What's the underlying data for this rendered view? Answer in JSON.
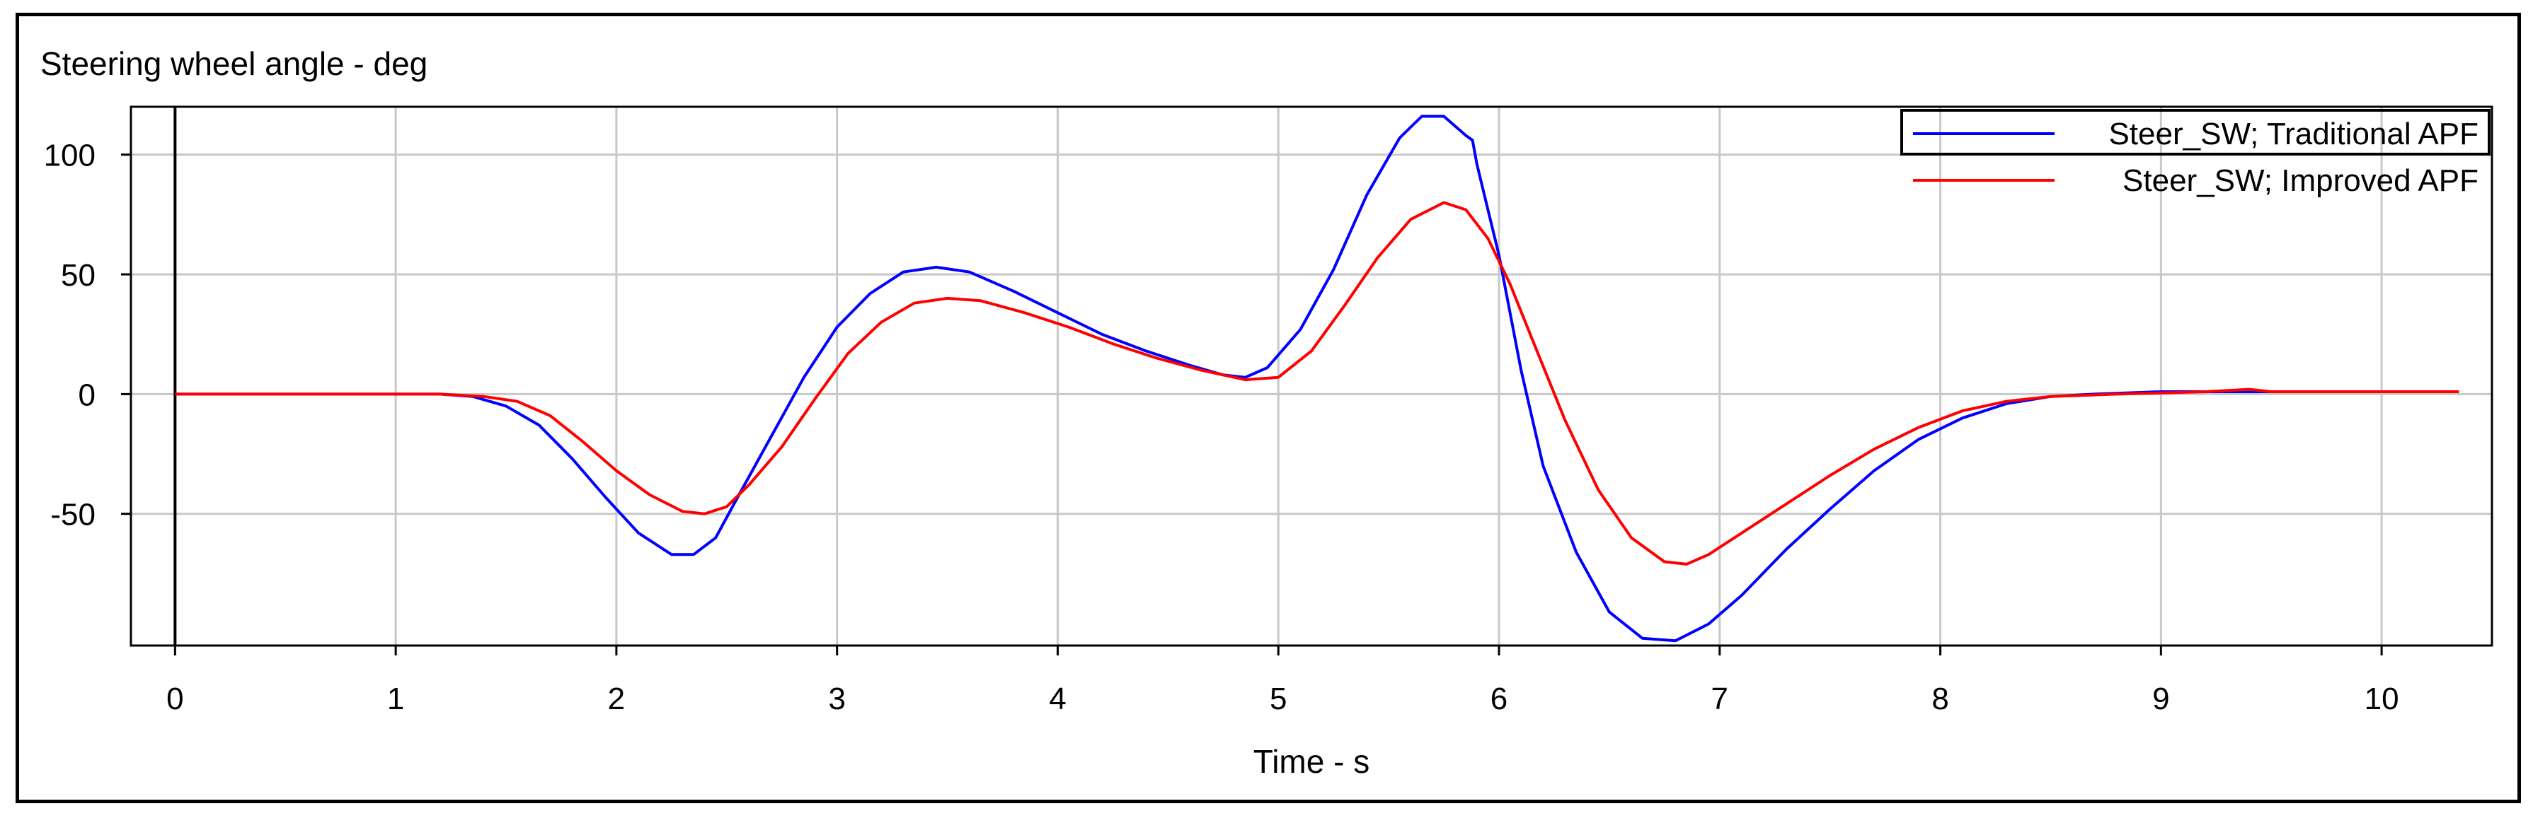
{
  "chart_data": {
    "type": "line",
    "title": "Steering wheel angle - deg",
    "xlabel": "Time - s",
    "ylabel": "",
    "xlim": [
      -0.2,
      10.5
    ],
    "ylim": [
      -105,
      120
    ],
    "xticks": [
      0,
      1,
      2,
      3,
      4,
      5,
      6,
      7,
      8,
      9,
      10
    ],
    "yticks": [
      100,
      50,
      0,
      -50
    ],
    "grid": true,
    "legend_position": "top-right",
    "series": [
      {
        "name": "Steer_SW; Traditional APF",
        "color": "#0000ff",
        "points": [
          [
            0,
            0
          ],
          [
            1.0,
            0
          ],
          [
            1.2,
            0
          ],
          [
            1.35,
            -1
          ],
          [
            1.5,
            -5
          ],
          [
            1.65,
            -13
          ],
          [
            1.8,
            -27
          ],
          [
            1.95,
            -43
          ],
          [
            2.1,
            -58
          ],
          [
            2.25,
            -67
          ],
          [
            2.35,
            -67
          ],
          [
            2.45,
            -60
          ],
          [
            2.55,
            -43
          ],
          [
            2.7,
            -18
          ],
          [
            2.85,
            7
          ],
          [
            3.0,
            28
          ],
          [
            3.15,
            42
          ],
          [
            3.3,
            51
          ],
          [
            3.45,
            53
          ],
          [
            3.6,
            51
          ],
          [
            3.8,
            43
          ],
          [
            4.0,
            34
          ],
          [
            4.2,
            25
          ],
          [
            4.4,
            18
          ],
          [
            4.6,
            12
          ],
          [
            4.75,
            8
          ],
          [
            4.85,
            7
          ],
          [
            4.95,
            11
          ],
          [
            5.1,
            27
          ],
          [
            5.25,
            52
          ],
          [
            5.4,
            83
          ],
          [
            5.55,
            107
          ],
          [
            5.65,
            116
          ],
          [
            5.75,
            116
          ],
          [
            5.8,
            112
          ],
          [
            5.85,
            108
          ],
          [
            5.88,
            106
          ],
          [
            5.9,
            96
          ],
          [
            6.0,
            58
          ],
          [
            6.1,
            10
          ],
          [
            6.2,
            -30
          ],
          [
            6.35,
            -66
          ],
          [
            6.5,
            -91
          ],
          [
            6.65,
            -102
          ],
          [
            6.8,
            -103
          ],
          [
            6.95,
            -96
          ],
          [
            7.1,
            -84
          ],
          [
            7.3,
            -65
          ],
          [
            7.5,
            -48
          ],
          [
            7.7,
            -32
          ],
          [
            7.9,
            -19
          ],
          [
            8.1,
            -10
          ],
          [
            8.3,
            -4
          ],
          [
            8.5,
            -1
          ],
          [
            8.7,
            0
          ],
          [
            9.0,
            1
          ],
          [
            9.5,
            1
          ],
          [
            10.0,
            1
          ],
          [
            10.35,
            1
          ]
        ]
      },
      {
        "name": "Steer_SW; Improved APF",
        "color": "#ff0000",
        "points": [
          [
            0,
            0
          ],
          [
            1.2,
            0
          ],
          [
            1.4,
            -1
          ],
          [
            1.55,
            -3
          ],
          [
            1.7,
            -9
          ],
          [
            1.85,
            -20
          ],
          [
            2.0,
            -32
          ],
          [
            2.15,
            -42
          ],
          [
            2.3,
            -49
          ],
          [
            2.4,
            -50
          ],
          [
            2.5,
            -47
          ],
          [
            2.6,
            -38
          ],
          [
            2.75,
            -22
          ],
          [
            2.9,
            -2
          ],
          [
            3.05,
            17
          ],
          [
            3.2,
            30
          ],
          [
            3.35,
            38
          ],
          [
            3.5,
            40
          ],
          [
            3.65,
            39
          ],
          [
            3.85,
            34
          ],
          [
            4.05,
            28
          ],
          [
            4.25,
            21
          ],
          [
            4.45,
            15
          ],
          [
            4.65,
            10
          ],
          [
            4.85,
            6
          ],
          [
            5.0,
            7
          ],
          [
            5.15,
            18
          ],
          [
            5.3,
            37
          ],
          [
            5.45,
            57
          ],
          [
            5.6,
            73
          ],
          [
            5.75,
            80
          ],
          [
            5.85,
            77
          ],
          [
            5.95,
            65
          ],
          [
            6.05,
            46
          ],
          [
            6.15,
            23
          ],
          [
            6.3,
            -11
          ],
          [
            6.45,
            -40
          ],
          [
            6.6,
            -60
          ],
          [
            6.75,
            -70
          ],
          [
            6.85,
            -71
          ],
          [
            6.95,
            -67
          ],
          [
            7.1,
            -58
          ],
          [
            7.3,
            -46
          ],
          [
            7.5,
            -34
          ],
          [
            7.7,
            -23
          ],
          [
            7.9,
            -14
          ],
          [
            8.1,
            -7
          ],
          [
            8.3,
            -3
          ],
          [
            8.5,
            -1
          ],
          [
            8.8,
            0
          ],
          [
            9.2,
            1
          ],
          [
            9.4,
            2
          ],
          [
            9.5,
            1
          ],
          [
            9.8,
            1
          ],
          [
            10.35,
            1
          ]
        ]
      }
    ]
  }
}
